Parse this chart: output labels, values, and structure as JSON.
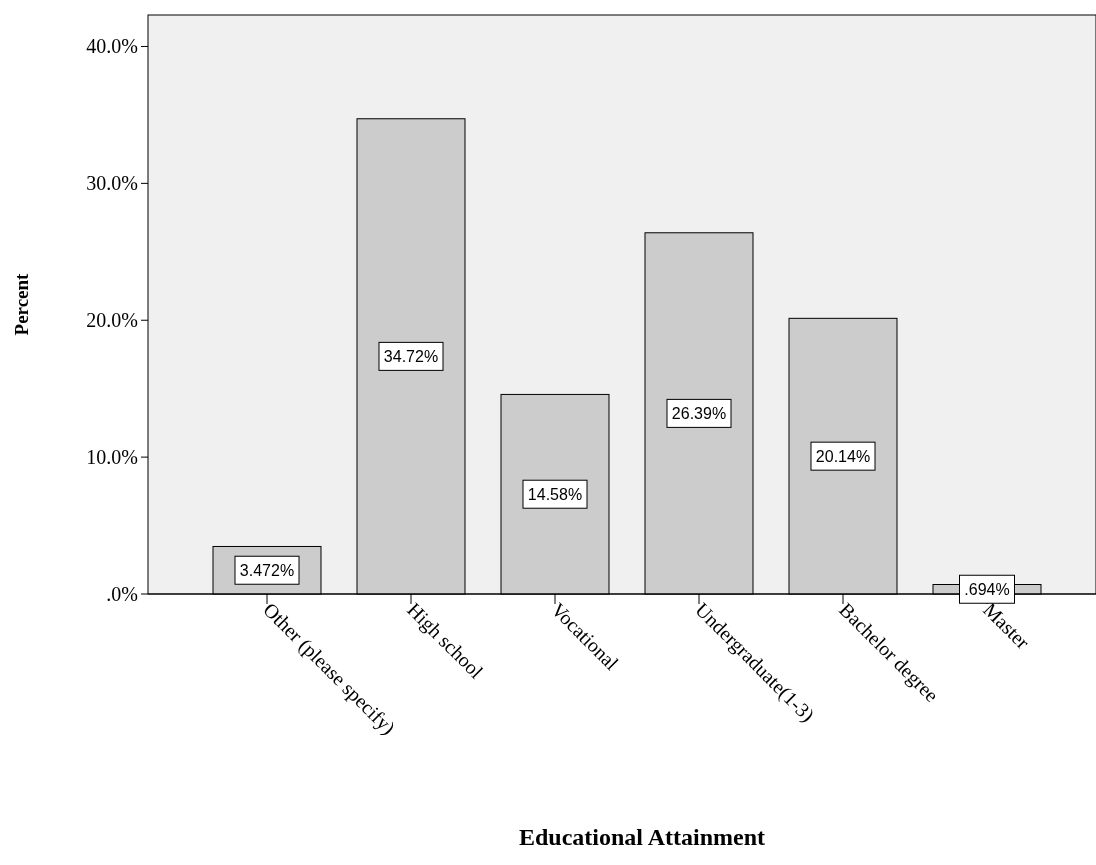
{
  "chart_data": {
    "type": "bar",
    "xlabel": "Educational Attainment",
    "ylabel": "Percent",
    "categories": [
      "Other (please specify)",
      "High school",
      "Vocational",
      "Undergraduate(1-3)",
      "Bachelor degree",
      "Master"
    ],
    "values": [
      3.472,
      34.72,
      14.58,
      26.39,
      20.14,
      0.694
    ],
    "value_labels": [
      "3.472%",
      "34.72%",
      "14.58%",
      "26.39%",
      "20.14%",
      ".694%"
    ],
    "color": "#cccccc",
    "ylim": [
      0,
      42.3
    ],
    "yticks": [
      {
        "value": 0,
        "label": ".0%"
      },
      {
        "value": 10,
        "label": "10.0%"
      },
      {
        "value": 20,
        "label": "20.0%"
      },
      {
        "value": 30,
        "label": "30.0%"
      },
      {
        "value": 40,
        "label": "40.0%"
      }
    ],
    "grid": false
  }
}
